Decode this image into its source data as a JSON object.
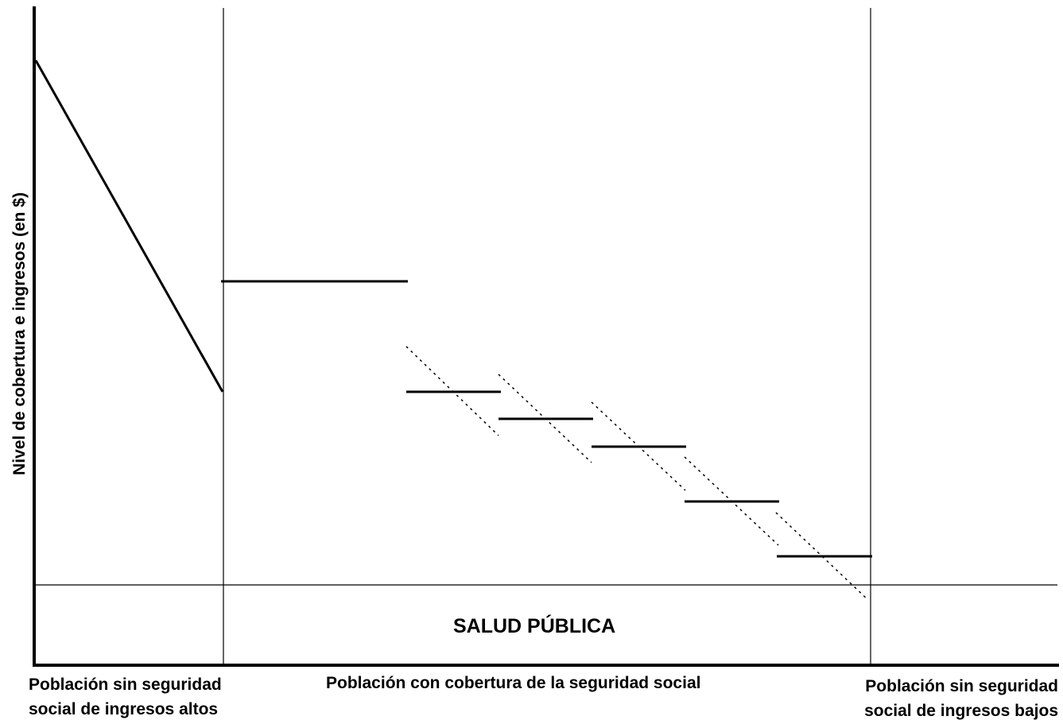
{
  "axes": {
    "y_label": "Nivel de cobertura e ingresos (en $)"
  },
  "sections": {
    "left_label_line1": "Población sin seguridad",
    "left_label_line2": "social de ingresos altos",
    "middle_label": "Población con cobertura de la seguridad social",
    "right_label_line1": "Población sin seguridad",
    "right_label_line2": "social de ingresos bajos",
    "public_health_label": "SALUD PÚBLICA"
  },
  "colors": {
    "ink": "#000000",
    "background": "#ffffff"
  }
}
